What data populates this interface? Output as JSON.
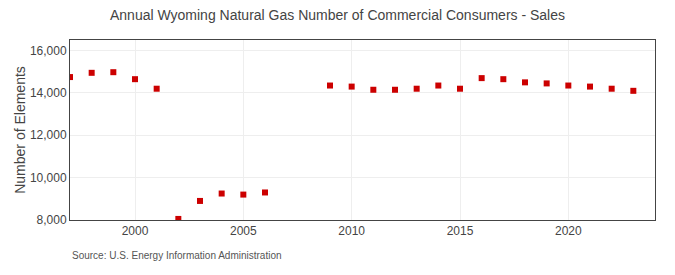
{
  "chart_data": {
    "type": "scatter",
    "title": "Annual Wyoming Natural Gas Number of Commercial Consumers - Sales",
    "ylabel": "Number of Elements",
    "annotation": "Source: U.S. Energy Information Administration",
    "x": [
      1997,
      1998,
      1999,
      2000,
      2001,
      2002,
      2003,
      2004,
      2005,
      2006,
      2009,
      2010,
      2011,
      2012,
      2013,
      2014,
      2015,
      2016,
      2017,
      2018,
      2019,
      2020,
      2021,
      2022,
      2023
    ],
    "values": [
      14750,
      14950,
      14980,
      14650,
      14200,
      8050,
      8900,
      9250,
      9200,
      9300,
      14350,
      14300,
      14150,
      14150,
      14200,
      14350,
      14200,
      14700,
      14650,
      14500,
      14450,
      14350,
      14300,
      14200,
      14100
    ],
    "color": "#cc0000",
    "marker": "square",
    "xlim": [
      1997,
      2024
    ],
    "xticks": [
      2000,
      2005,
      2010,
      2015,
      2020
    ],
    "ylim": [
      8000,
      16500
    ],
    "yticks": [
      {
        "value": 8000,
        "label": "8,000"
      },
      {
        "value": 10000,
        "label": "10,000"
      },
      {
        "value": 12000,
        "label": "12,000"
      },
      {
        "value": 14000,
        "label": "14,000"
      },
      {
        "value": 16000,
        "label": "16,000"
      }
    ],
    "grid": true
  }
}
